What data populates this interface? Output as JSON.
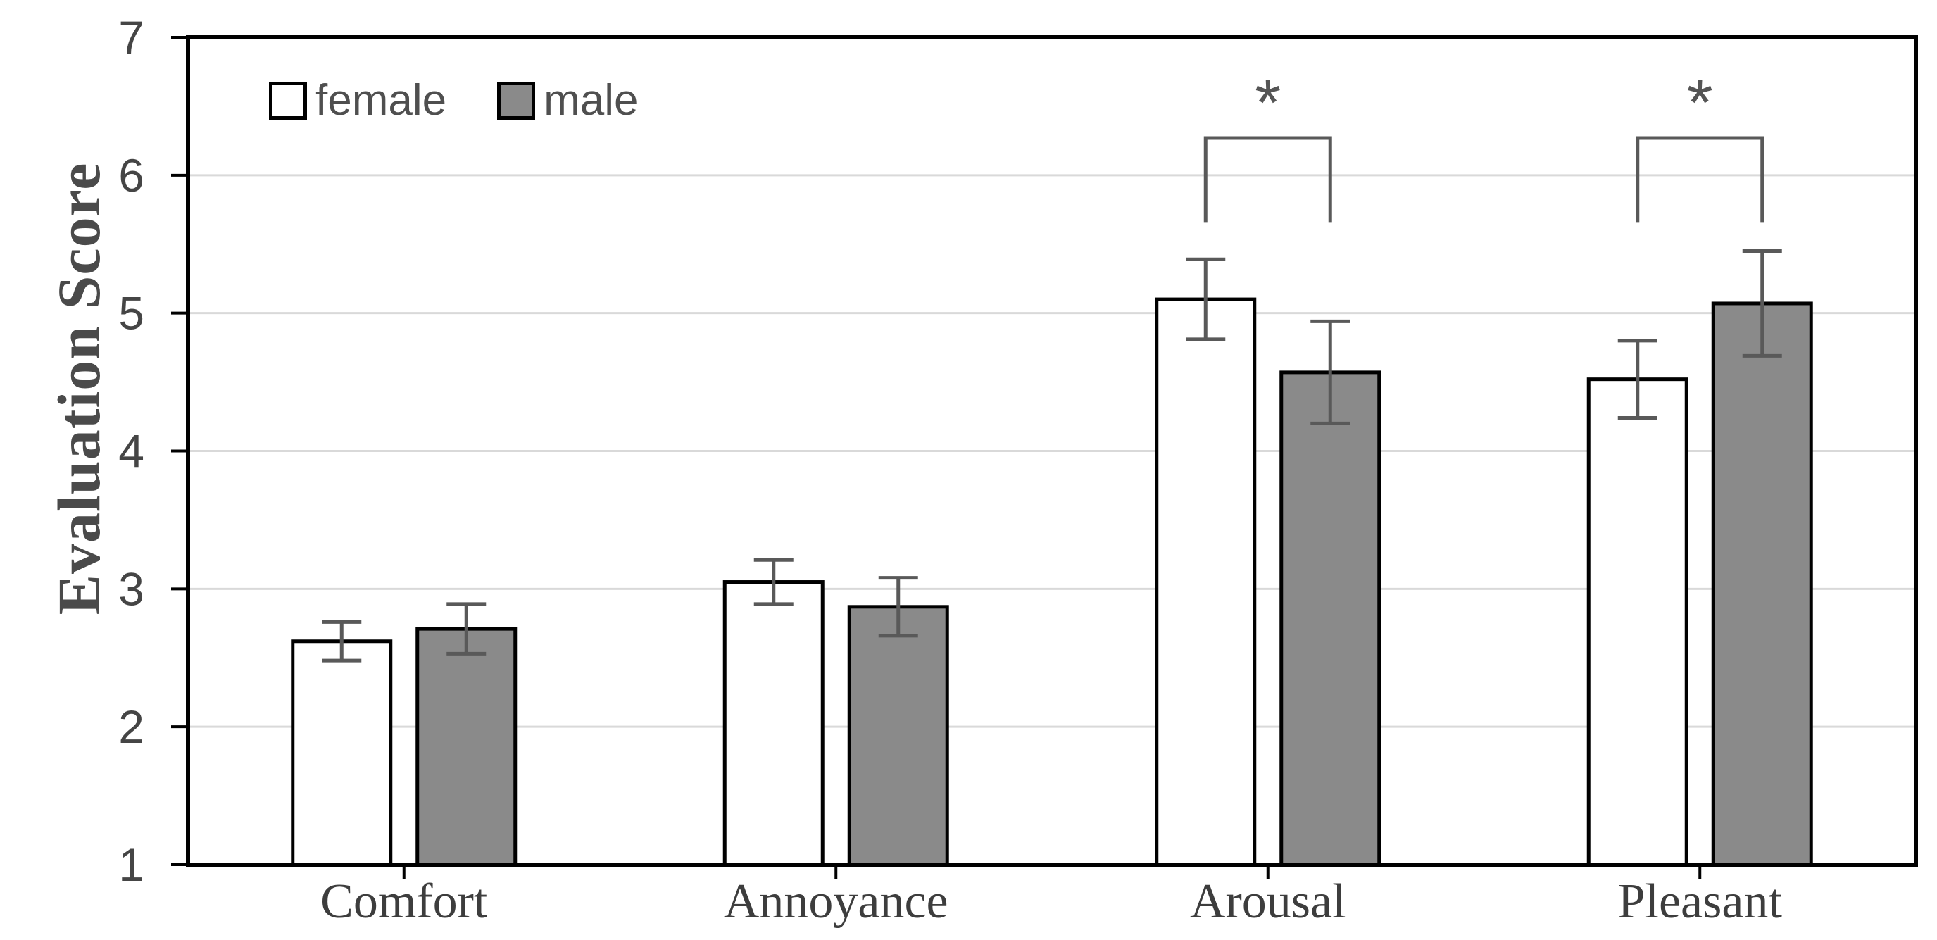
{
  "chart_data": {
    "type": "bar",
    "title": "",
    "ylabel": "Evaluation Score",
    "xlabel": "",
    "ylim": [
      1,
      7
    ],
    "yticks": [
      1,
      2,
      3,
      4,
      5,
      6,
      7
    ],
    "grid": "horizontal",
    "legend_position": "top-left-inside",
    "categories": [
      "Comfort",
      "Annoyance",
      "Arousal",
      "Pleasant"
    ],
    "series": [
      {
        "name": "female",
        "fill": "#ffffff",
        "values": [
          2.62,
          3.05,
          5.1,
          4.52
        ],
        "errors": [
          0.14,
          0.16,
          0.29,
          0.28
        ]
      },
      {
        "name": "male",
        "fill": "#8a8a8a",
        "values": [
          2.71,
          2.87,
          4.57,
          5.07
        ],
        "errors": [
          0.18,
          0.21,
          0.37,
          0.38
        ]
      }
    ],
    "significance": [
      {
        "category": "Arousal",
        "label": "*",
        "top": 6.27,
        "drop_to": 5.66
      },
      {
        "category": "Pleasant",
        "label": "*",
        "top": 6.27,
        "drop_to": 5.66
      }
    ],
    "colors": {
      "axis": "#000000",
      "bar_stroke": "#000000",
      "gridline": "#d9d9d9",
      "error_bar": "#595959",
      "bracket": "#595959",
      "tick_label": "#454545",
      "category_label": "#3d3d3d",
      "legend_label": "#4f4f4f",
      "axis_title": "#4a4a4a",
      "significance": "#555555",
      "background": "#ffffff"
    }
  }
}
